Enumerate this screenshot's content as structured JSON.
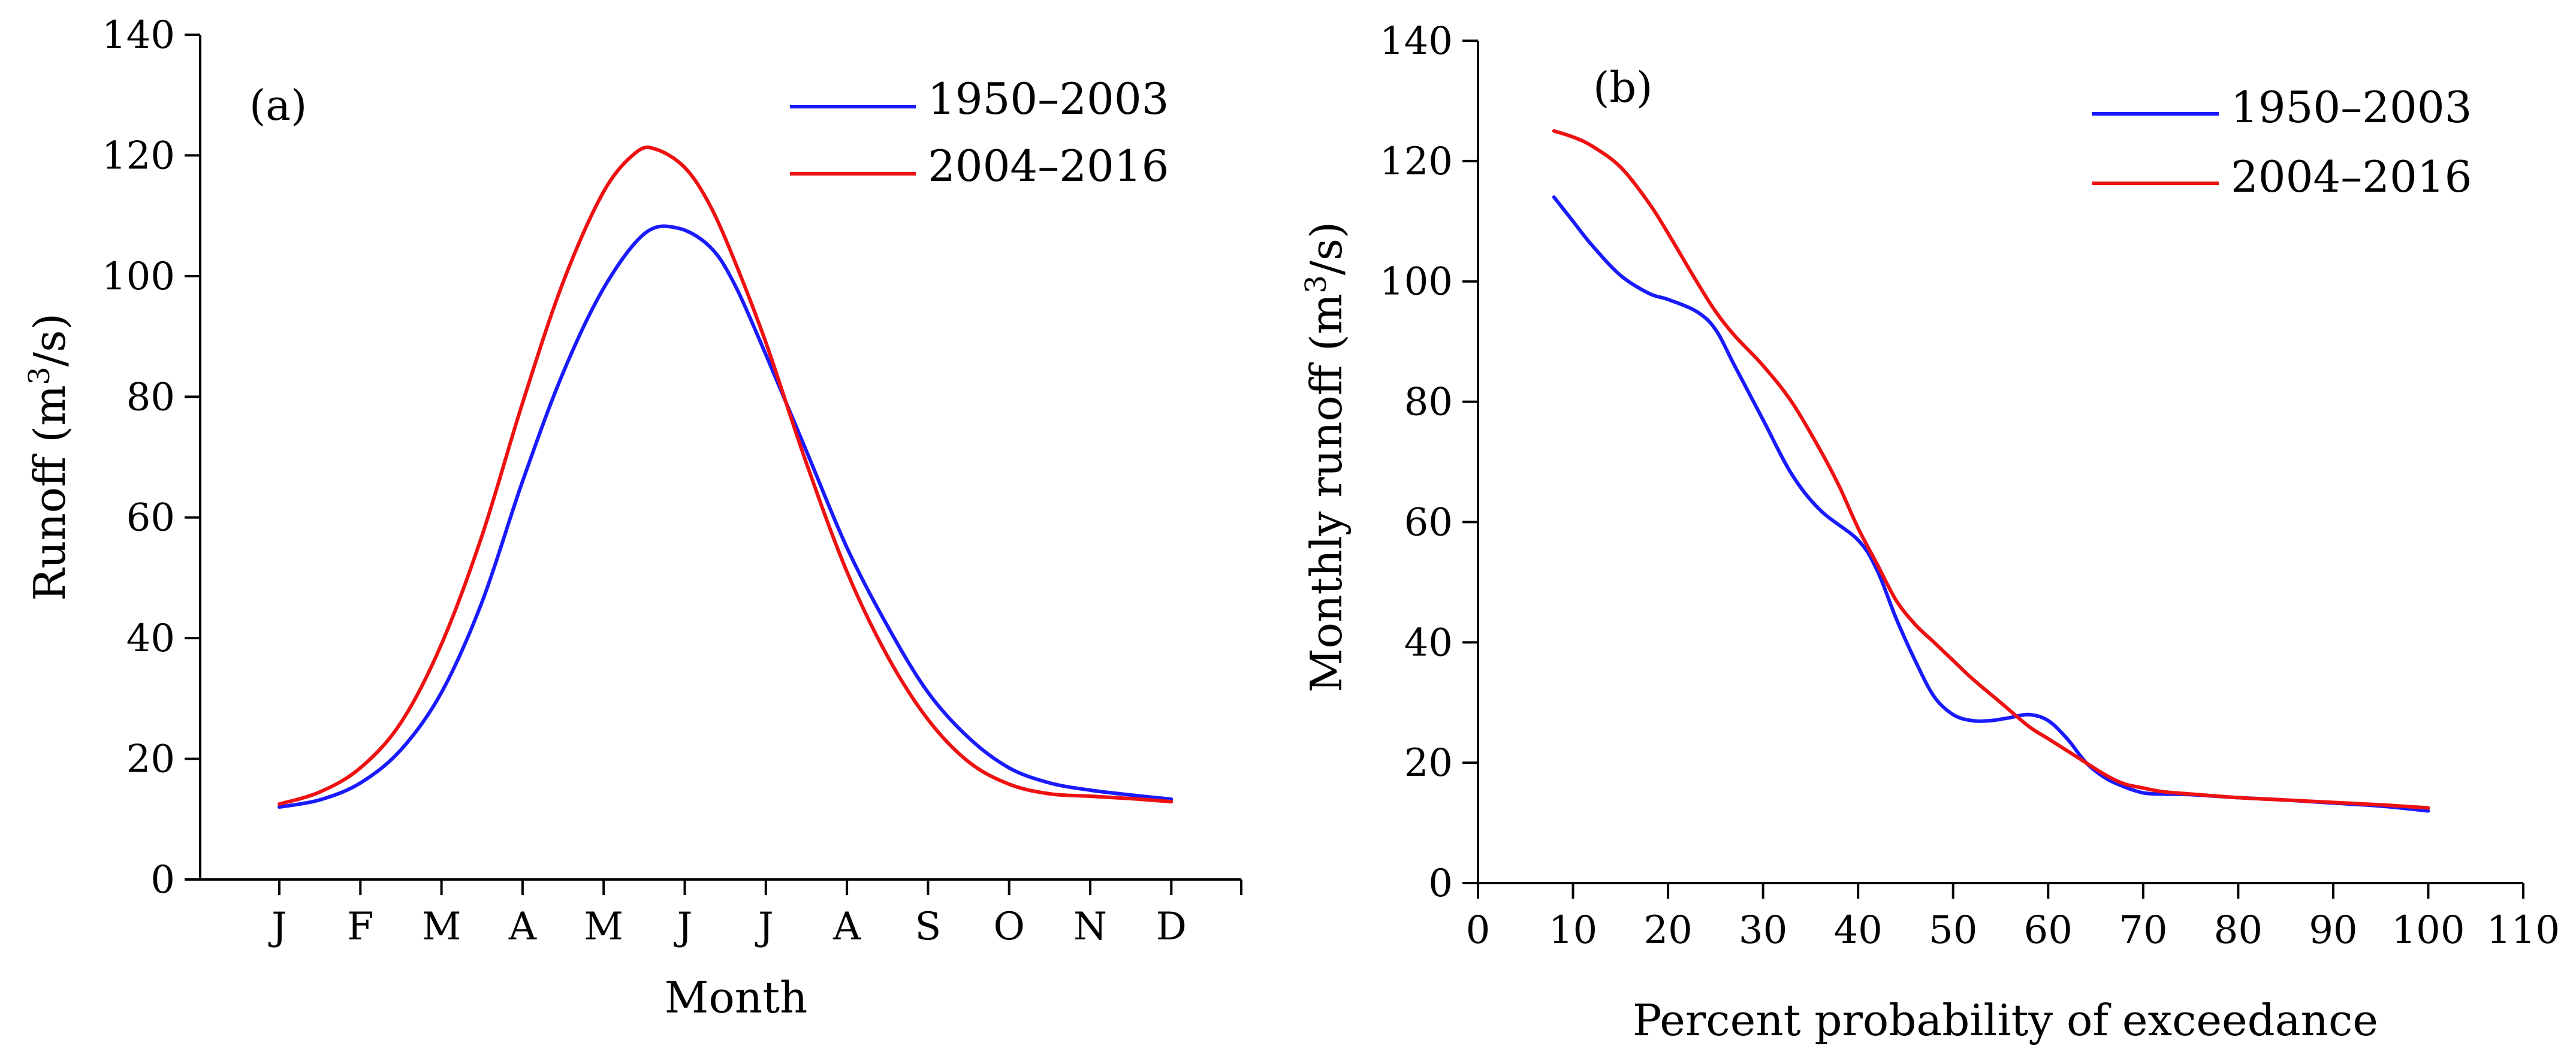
{
  "chart_data": [
    {
      "type": "line",
      "panel_label": "(a)",
      "title": "",
      "xlabel": "Month",
      "ylabel_main": "Runoff (m",
      "ylabel_sup": "3",
      "ylabel_tail": "/s)",
      "categories": [
        "J",
        "F",
        "M",
        "A",
        "M",
        "J",
        "J",
        "A",
        "S",
        "O",
        "N",
        "D"
      ],
      "ylim": [
        0,
        140
      ],
      "yticks": [
        0,
        20,
        40,
        60,
        80,
        100,
        120,
        140
      ],
      "grid": false,
      "legend_position": "top-right",
      "series": [
        {
          "name": "1950–2003",
          "color": "#1a1aff",
          "points": [
            [
              1,
              12
            ],
            [
              1.5,
              13.2
            ],
            [
              2,
              16
            ],
            [
              2.5,
              21.5
            ],
            [
              3,
              31
            ],
            [
              3.5,
              46
            ],
            [
              4,
              66
            ],
            [
              4.5,
              84
            ],
            [
              5,
              98
            ],
            [
              5.5,
              107
            ],
            [
              5.9,
              108
            ],
            [
              6.3,
              105
            ],
            [
              6.6,
              99
            ],
            [
              7,
              87
            ],
            [
              7.5,
              71
            ],
            [
              8,
              55
            ],
            [
              8.5,
              42
            ],
            [
              9,
              31
            ],
            [
              9.5,
              23.5
            ],
            [
              10,
              18.5
            ],
            [
              10.5,
              16
            ],
            [
              11,
              14.8
            ],
            [
              11.5,
              14
            ],
            [
              12,
              13.3
            ]
          ]
        },
        {
          "name": "2004–2016",
          "color": "#ee1111",
          "points": [
            [
              1,
              12.5
            ],
            [
              1.5,
              14.5
            ],
            [
              2,
              18.5
            ],
            [
              2.5,
              26
            ],
            [
              3,
              39
            ],
            [
              3.5,
              57
            ],
            [
              4,
              79
            ],
            [
              4.5,
              99
            ],
            [
              5,
              114
            ],
            [
              5.4,
              120.5
            ],
            [
              5.65,
              121
            ],
            [
              6,
              118
            ],
            [
              6.3,
              112
            ],
            [
              6.6,
              103
            ],
            [
              7,
              89
            ],
            [
              7.5,
              69
            ],
            [
              8,
              51
            ],
            [
              8.5,
              37
            ],
            [
              9,
              26.5
            ],
            [
              9.5,
              19.5
            ],
            [
              10,
              15.8
            ],
            [
              10.5,
              14.2
            ],
            [
              11,
              13.8
            ],
            [
              11.5,
              13.4
            ],
            [
              12,
              12.9
            ]
          ]
        }
      ]
    },
    {
      "type": "line",
      "panel_label": "(b)",
      "title": "",
      "xlabel": "Percent probability of exceedance",
      "ylabel_main": "Monthly runoff (m",
      "ylabel_sup": "3",
      "ylabel_tail": "/s)",
      "xlim": [
        0,
        110
      ],
      "xticks": [
        0,
        10,
        20,
        30,
        40,
        50,
        60,
        70,
        80,
        90,
        100,
        110
      ],
      "ylim": [
        0,
        140
      ],
      "yticks": [
        0,
        20,
        40,
        60,
        80,
        100,
        120,
        140
      ],
      "grid": false,
      "legend_position": "top-right",
      "series": [
        {
          "name": "1950–2003",
          "color": "#1a1aff",
          "points": [
            [
              8,
              114
            ],
            [
              10,
              110
            ],
            [
              12,
              106
            ],
            [
              15,
              101
            ],
            [
              18,
              98
            ],
            [
              20,
              97
            ],
            [
              23,
              95
            ],
            [
              25,
              92
            ],
            [
              27,
              86
            ],
            [
              30,
              77
            ],
            [
              33,
              68
            ],
            [
              36,
              62
            ],
            [
              40,
              57
            ],
            [
              42,
              52
            ],
            [
              44,
              44
            ],
            [
              46,
              37
            ],
            [
              48,
              31
            ],
            [
              50,
              28
            ],
            [
              52,
              27
            ],
            [
              54,
              27
            ],
            [
              56,
              27.5
            ],
            [
              58,
              28
            ],
            [
              60,
              27
            ],
            [
              62,
              24
            ],
            [
              64,
              20
            ],
            [
              66,
              17.5
            ],
            [
              68,
              16
            ],
            [
              70,
              15
            ],
            [
              72,
              14.8
            ],
            [
              75,
              14.7
            ],
            [
              80,
              14.2
            ],
            [
              85,
              13.8
            ],
            [
              90,
              13.3
            ],
            [
              95,
              12.8
            ],
            [
              100,
              12
            ]
          ]
        },
        {
          "name": "2004–2016",
          "color": "#ee1111",
          "points": [
            [
              8,
              125
            ],
            [
              10,
              124
            ],
            [
              12,
              122.5
            ],
            [
              15,
              119
            ],
            [
              18,
              113
            ],
            [
              20,
              108
            ],
            [
              23,
              100
            ],
            [
              25,
              95
            ],
            [
              27,
              91
            ],
            [
              30,
              86
            ],
            [
              33,
              80
            ],
            [
              36,
              72
            ],
            [
              38,
              66
            ],
            [
              40,
              59
            ],
            [
              42,
              53
            ],
            [
              44,
              47
            ],
            [
              46,
              43
            ],
            [
              48,
              40
            ],
            [
              50,
              37
            ],
            [
              52,
              34
            ],
            [
              55,
              30
            ],
            [
              58,
              26
            ],
            [
              60,
              24
            ],
            [
              63,
              21
            ],
            [
              66,
              18
            ],
            [
              68,
              16.5
            ],
            [
              70,
              15.8
            ],
            [
              72,
              15.2
            ],
            [
              75,
              14.8
            ],
            [
              80,
              14.2
            ],
            [
              85,
              13.8
            ],
            [
              90,
              13.4
            ],
            [
              95,
              13
            ],
            [
              100,
              12.5
            ]
          ]
        }
      ]
    }
  ]
}
